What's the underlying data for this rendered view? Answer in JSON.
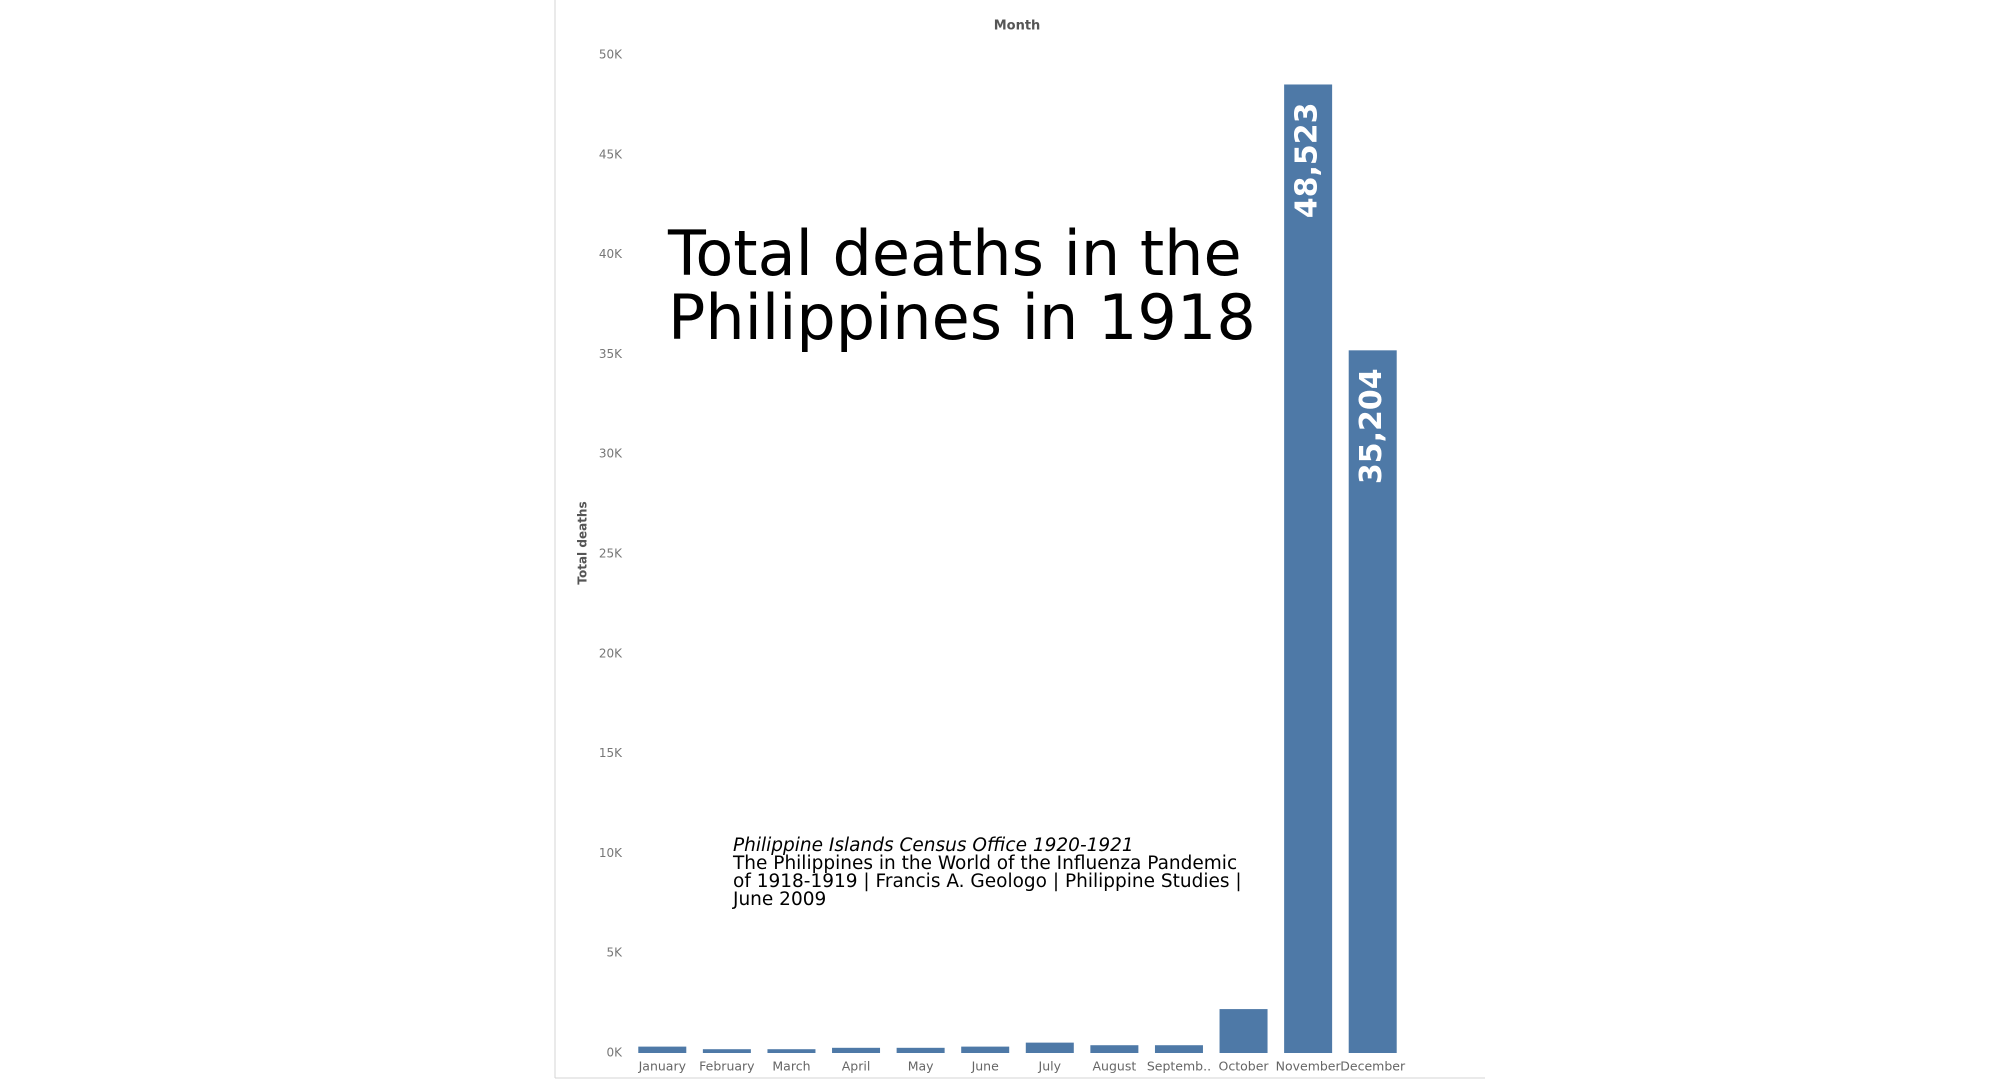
{
  "chart_data": {
    "type": "bar",
    "title": "Total deaths in the Philippines in 1918",
    "x_label": "Month",
    "y_label": "Total deaths",
    "source_italic": "Philippine Islands Census Office 1920-1921",
    "source_text": "The Philippines in the World of the Influenza Pandemic of 1918-1919 | Francis A. Geologo | Philippine Studies | June 2009",
    "categories": [
      "January",
      "February",
      "March",
      "April",
      "May",
      "June",
      "July",
      "August",
      "Septemb..",
      "October",
      "November",
      "December"
    ],
    "values": [
      320,
      190,
      190,
      260,
      260,
      320,
      520,
      390,
      390,
      2200,
      48523,
      35204
    ],
    "value_labels": [
      null,
      null,
      null,
      null,
      null,
      null,
      null,
      null,
      null,
      null,
      "48,523",
      "35,204"
    ],
    "color": "#4e79a7",
    "ylim": [
      0,
      50000
    ],
    "yticks": [
      {
        "value": 0,
        "label": "0K"
      },
      {
        "value": 5000,
        "label": "5K"
      },
      {
        "value": 10000,
        "label": "10K"
      },
      {
        "value": 15000,
        "label": "15K"
      },
      {
        "value": 20000,
        "label": "20K"
      },
      {
        "value": 25000,
        "label": "25K"
      },
      {
        "value": 30000,
        "label": "30K"
      },
      {
        "value": 35000,
        "label": "35K"
      },
      {
        "value": 40000,
        "label": "40K"
      },
      {
        "value": 45000,
        "label": "45K"
      },
      {
        "value": 50000,
        "label": "50K"
      }
    ],
    "grid": true
  }
}
